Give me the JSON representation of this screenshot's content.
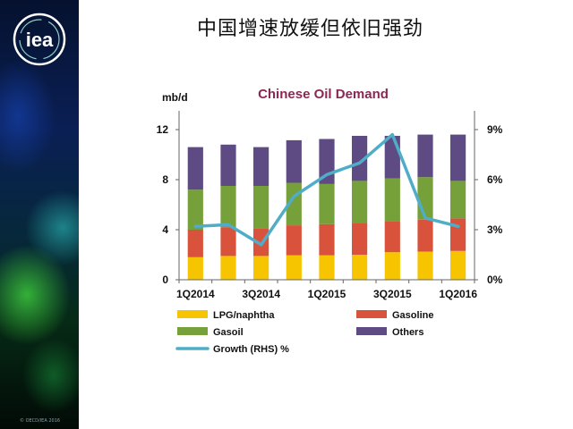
{
  "slide": {
    "title": "中国增速放缓但依旧强劲",
    "logo_text": "iea",
    "copyright": "© OECD/IEA 2016"
  },
  "colors": {
    "lpg": "#f7c400",
    "gasoline": "#d9533c",
    "gasoil": "#76a03a",
    "others": "#5e4b84",
    "growth": "#4fadc8",
    "title": "#8b2752"
  },
  "chart_data": {
    "type": "bar",
    "stacked": true,
    "title": "Chinese Oil Demand",
    "ylabel": "mb/d",
    "ylim": [
      0,
      13.5
    ],
    "y_ticks": [
      "0",
      "4",
      "8",
      "12"
    ],
    "y_tick_values": [
      0,
      4,
      8,
      12
    ],
    "y2lim": [
      0,
      10.125
    ],
    "y2_ticks": [
      "0%",
      "3%",
      "6%",
      "9%"
    ],
    "y2_tick_values": [
      0,
      3,
      6,
      9
    ],
    "categories": [
      "1Q2014",
      "2Q2014",
      "3Q2014",
      "4Q2014",
      "1Q2015",
      "2Q2015",
      "3Q2015",
      "4Q2015",
      "1Q2016"
    ],
    "x_tick_labels": [
      "1Q2014",
      "3Q2014",
      "1Q2015",
      "3Q2015",
      "1Q2016"
    ],
    "x_tick_label_indices": [
      0,
      2,
      4,
      6,
      8
    ],
    "series": [
      {
        "name": "LPG/naphtha",
        "key": "lpg",
        "values": [
          1.8,
          1.9,
          1.9,
          1.95,
          1.95,
          2.0,
          2.2,
          2.25,
          2.3
        ]
      },
      {
        "name": "Gasoline",
        "key": "gasoline",
        "values": [
          2.2,
          2.3,
          2.2,
          2.4,
          2.5,
          2.5,
          2.5,
          2.55,
          2.6
        ]
      },
      {
        "name": "Gasoil",
        "key": "gasoil",
        "values": [
          3.2,
          3.3,
          3.4,
          3.4,
          3.2,
          3.4,
          3.4,
          3.4,
          3.0
        ]
      },
      {
        "name": "Others",
        "key": "others",
        "values": [
          3.4,
          3.3,
          3.1,
          3.4,
          3.6,
          3.6,
          3.4,
          3.4,
          3.7
        ]
      }
    ],
    "line_series": {
      "name": "Growth (RHS) %",
      "axis": "right",
      "values": [
        3.2,
        3.3,
        2.1,
        5.0,
        6.3,
        7.0,
        8.7,
        3.7,
        3.2
      ]
    },
    "legend": [
      {
        "label": "LPG/naphtha",
        "key": "lpg",
        "kind": "box"
      },
      {
        "label": "Gasoline",
        "key": "gasoline",
        "kind": "box"
      },
      {
        "label": "Gasoil",
        "key": "gasoil",
        "kind": "box"
      },
      {
        "label": "Others",
        "key": "others",
        "kind": "box"
      },
      {
        "label": "Growth (RHS) %",
        "key": "growth",
        "kind": "line"
      }
    ]
  }
}
